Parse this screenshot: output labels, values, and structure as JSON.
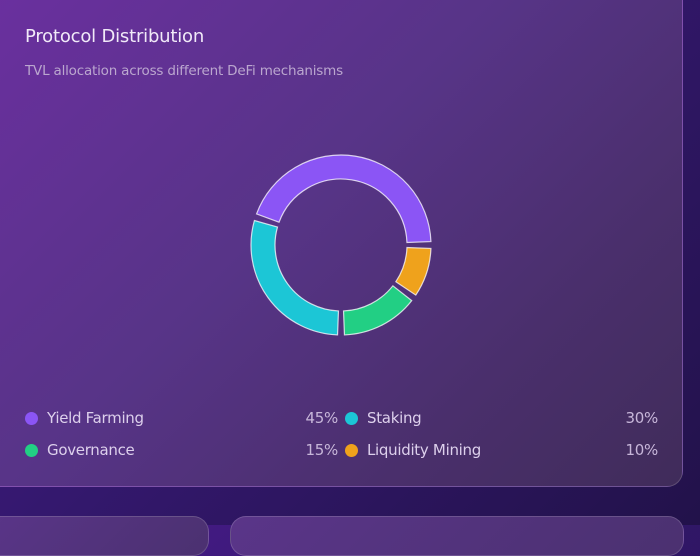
{
  "card": {
    "title": "Protocol Distribution",
    "subtitle": "TVL allocation across different DeFi mechanisms"
  },
  "legend": [
    {
      "label": "Yield Farming",
      "value": "45%",
      "color": "#8b55f5"
    },
    {
      "label": "Staking",
      "value": "30%",
      "color": "#1cc6d6"
    },
    {
      "label": "Governance",
      "value": "15%",
      "color": "#22cf84"
    },
    {
      "label": "Liquidity Mining",
      "value": "10%",
      "color": "#efa21c"
    }
  ],
  "chart_data": {
    "type": "pie",
    "title": "Protocol Distribution",
    "subtitle": "TVL allocation across different DeFi mechanisms",
    "categories": [
      "Yield Farming",
      "Staking",
      "Governance",
      "Liquidity Mining"
    ],
    "values": [
      45,
      30,
      15,
      10
    ],
    "colors": [
      "#8b55f5",
      "#1cc6d6",
      "#22cf84",
      "#efa21c"
    ],
    "donut": true,
    "legend_position": "bottom"
  }
}
